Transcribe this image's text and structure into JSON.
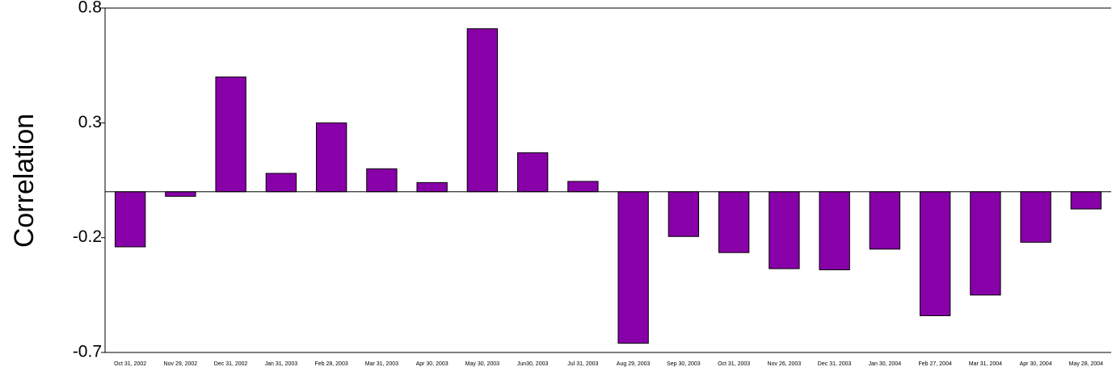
{
  "chart_data": {
    "type": "bar",
    "y_label": "Correlation",
    "categories": [
      "Oct 31, 2002",
      "Nov 29, 2002",
      "Dec 31, 2002",
      "Jan 31, 2003",
      "Feb 28, 2003",
      "Mar 31, 2003",
      "Apr 30, 2003",
      "May 30, 2003",
      "Jun30, 2003",
      "Jul 31, 2003",
      "Aug 29, 2003",
      "Sep 30, 2003",
      "Oct 31, 2003",
      "Nov 26, 2003",
      "Dec 31, 2003",
      "Jan 30, 2004",
      "Feb 27, 2004",
      "Mar 31, 2004",
      "Apr 30, 2004",
      "May 28, 2004"
    ],
    "values": [
      -0.24,
      -0.02,
      0.5,
      0.08,
      0.3,
      0.1,
      0.04,
      0.71,
      0.17,
      0.045,
      -0.66,
      -0.195,
      -0.265,
      -0.335,
      -0.34,
      -0.25,
      -0.54,
      -0.45,
      -0.22,
      -0.075
    ],
    "color": "#8800a8",
    "ylim": [
      -0.7,
      0.8
    ],
    "yticks": [
      -0.7,
      -0.2,
      0.3,
      0.8
    ]
  }
}
